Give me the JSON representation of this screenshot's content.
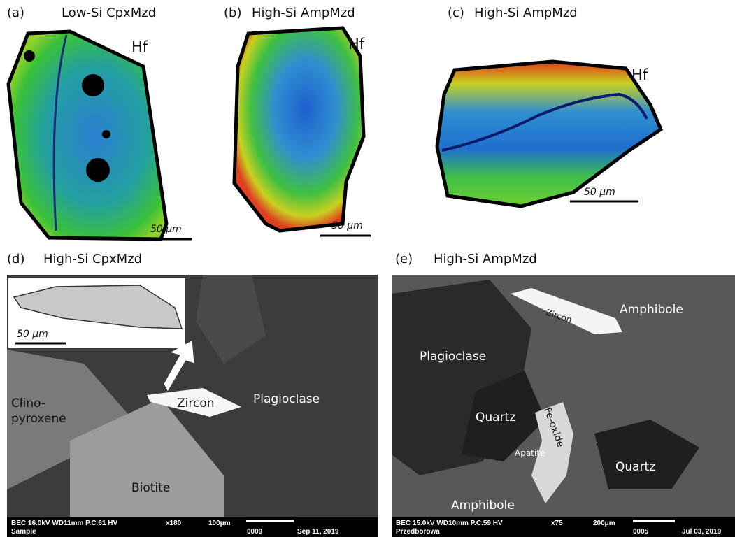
{
  "panels": [
    {
      "label": "(a)",
      "title": "Low-Si CpxMzd",
      "element": "Hf",
      "scale": "50 μm"
    },
    {
      "label": "(b)",
      "title": "High-Si AmpMzd",
      "element": "Hf",
      "scale": "50 μm"
    },
    {
      "label": "(c)",
      "title": "High-Si AmpMzd",
      "element": "Hf",
      "scale": "50 μm"
    },
    {
      "label": "(d)",
      "title": "High-Si CpxMzd",
      "inset_scale": "50 μm",
      "minerals": [
        "Zircon",
        "Plagioclase",
        "Clino-",
        "pyroxene",
        "Biotite"
      ],
      "footer": [
        "BEC 16.0kV WD11mm P.C.61 HV",
        "x180",
        "100μm",
        "0009",
        "Sep 11, 2019",
        "Sample"
      ]
    },
    {
      "label": "(e)",
      "title": "High-Si AmpMzd",
      "minerals": [
        "Zircon",
        "Amphibole",
        "Plagioclase",
        "Quartz",
        "Fe-oxide",
        "Apatite",
        "Quartz",
        "Amphibole"
      ],
      "footer": [
        "BEC 15.0kV WD10mm P.C.59 HV",
        "x75",
        "200μm",
        "0005",
        "Jul 03, 2019",
        "Przedborowa"
      ]
    }
  ]
}
